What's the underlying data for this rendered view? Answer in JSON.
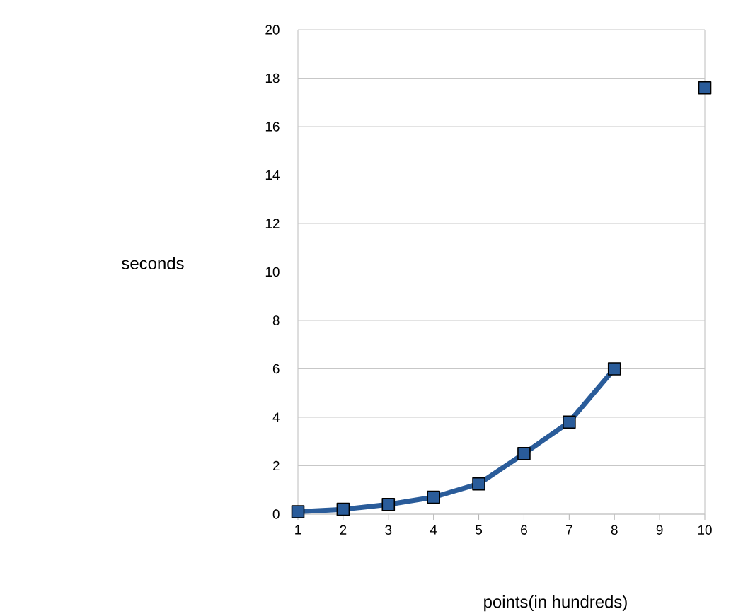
{
  "chart_data": {
    "type": "line",
    "xlabel": "points(in hundreds)",
    "ylabel": "seconds",
    "categories": [
      "1",
      "2",
      "3",
      "4",
      "5",
      "6",
      "7",
      "8",
      "9",
      "10"
    ],
    "series": [
      {
        "color": "#2a5c9a",
        "values": [
          0.1,
          0.2,
          0.4,
          0.7,
          1.25,
          2.5,
          3.8,
          6.0,
          null,
          17.6
        ]
      }
    ],
    "ylim": [
      0,
      20
    ],
    "yticks": [
      0,
      2,
      4,
      6,
      8,
      10,
      12,
      14,
      16,
      18,
      20
    ],
    "grid": "y",
    "marker": "square",
    "line_style": "solid"
  }
}
